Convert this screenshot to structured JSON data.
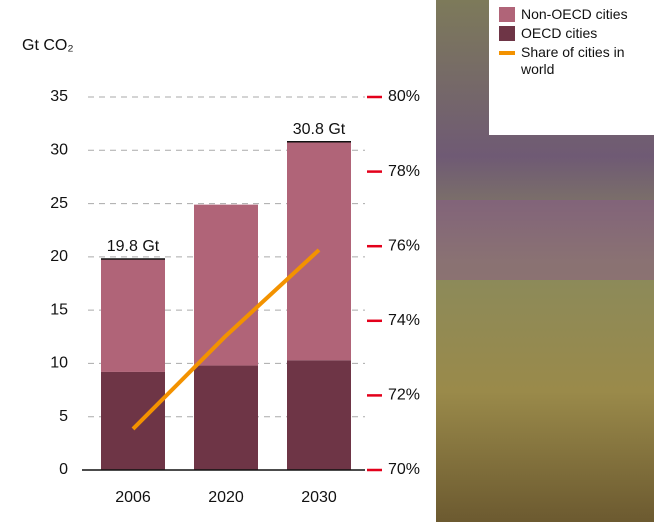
{
  "chart_data": {
    "type": "stacked-bar-line",
    "y_label": "Gt CO₂",
    "categories": [
      "2006",
      "2020",
      "2030"
    ],
    "series": [
      {
        "name": "OECD cities",
        "color": "#6e3546",
        "values": [
          9.2,
          9.8,
          10.3
        ]
      },
      {
        "name": "Non-OECD cities",
        "color": "#b06478",
        "values": [
          10.6,
          15.1,
          20.5
        ]
      },
      {
        "name": "Share of cities in world",
        "color": "#f39200",
        "axis": "y2",
        "type": "line",
        "values": [
          71.1,
          73.6,
          75.9
        ]
      }
    ],
    "annotations": [
      {
        "x": "2006",
        "value": 19.8,
        "label": "19.8 Gt"
      },
      {
        "x": "2030",
        "value": 30.8,
        "label": "30.8 Gt"
      }
    ],
    "ylim": [
      0,
      35
    ],
    "yticks": [
      0,
      5,
      10,
      15,
      20,
      25,
      30,
      35
    ],
    "y2lim": [
      70,
      80
    ],
    "y2ticks": [
      {
        "value": 70,
        "label": "70%"
      },
      {
        "value": 72,
        "label": "72%"
      },
      {
        "value": 74,
        "label": "74%"
      },
      {
        "value": 76,
        "label": "76%"
      },
      {
        "value": 78,
        "label": "78%"
      },
      {
        "value": 80,
        "label": "80%"
      }
    ],
    "grid": true,
    "legend": "top-right"
  }
}
